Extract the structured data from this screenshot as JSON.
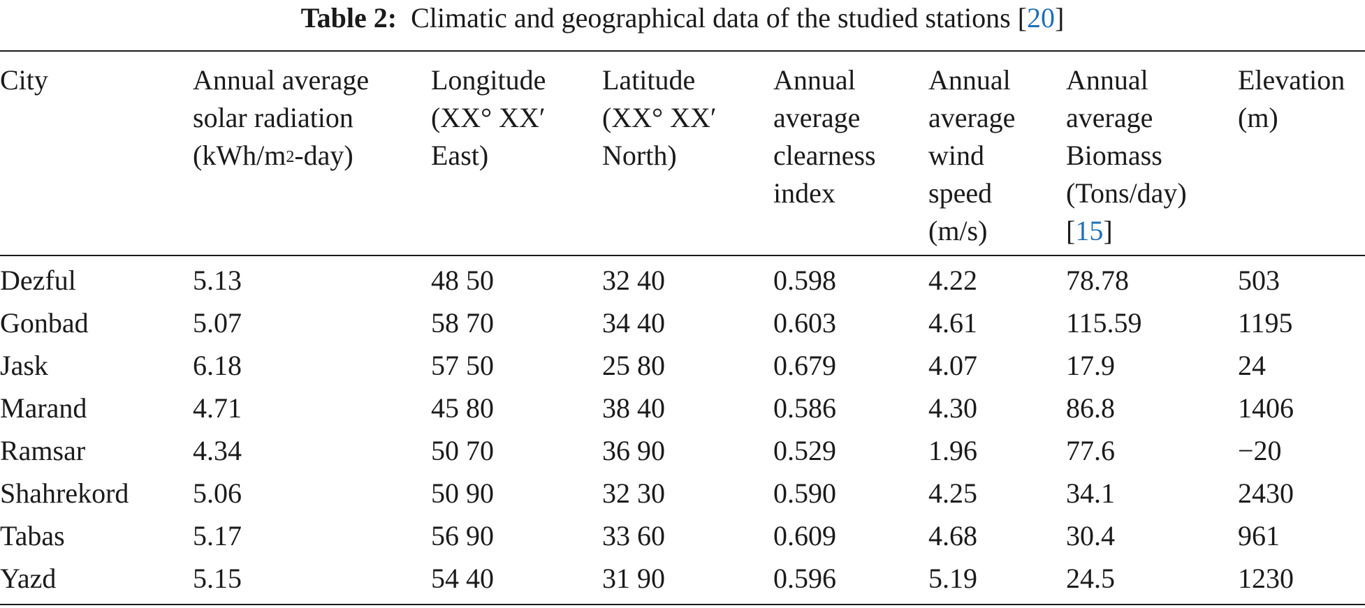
{
  "caption": {
    "label": "Table 2:",
    "text": "Climatic and geographical data of the studied stations",
    "ref_open": "[",
    "ref": "20",
    "ref_close": "]"
  },
  "columns": [
    {
      "lines": [
        "City"
      ]
    },
    {
      "lines": [
        "Annual average",
        "solar radiation",
        "(kWh/m",
        "-day)"
      ],
      "sup": "2"
    },
    {
      "lines": [
        "Longitude",
        "(XX° XX′",
        "East)"
      ]
    },
    {
      "lines": [
        "Latitude",
        "(XX° XX′",
        "North)"
      ]
    },
    {
      "lines": [
        "Annual",
        "average",
        "clearness",
        "index"
      ]
    },
    {
      "lines": [
        "Annual",
        "average",
        "wind",
        "speed",
        "(m/s)"
      ]
    },
    {
      "lines": [
        "Annual",
        "average",
        "Biomass",
        "(Tons/day)"
      ],
      "ref_open": "[",
      "ref": "15",
      "ref_close": "]"
    },
    {
      "lines": [
        "Elevation",
        "(m)"
      ]
    }
  ],
  "rows": [
    [
      "Dezful",
      "5.13",
      "48 50",
      "32 40",
      "0.598",
      "4.22",
      "78.78",
      "503"
    ],
    [
      "Gonbad",
      "5.07",
      "58 70",
      "34 40",
      "0.603",
      "4.61",
      "115.59",
      "1195"
    ],
    [
      "Jask",
      "6.18",
      "57 50",
      "25 80",
      "0.679",
      "4.07",
      "17.9",
      "24"
    ],
    [
      "Marand",
      "4.71",
      "45 80",
      "38 40",
      "0.586",
      "4.30",
      "86.8",
      "1406"
    ],
    [
      "Ramsar",
      "4.34",
      "50 70",
      "36 90",
      "0.529",
      "1.96",
      "77.6",
      "−20"
    ],
    [
      "Shahrekord",
      "5.06",
      "50 90",
      "32 30",
      "0.590",
      "4.25",
      "34.1",
      "2430"
    ],
    [
      "Tabas",
      "5.17",
      "56 90",
      "33 60",
      "0.609",
      "4.68",
      "30.4",
      "961"
    ],
    [
      "Yazd",
      "5.15",
      "54 40",
      "31 90",
      "0.596",
      "5.19",
      "24.5",
      "1230"
    ]
  ]
}
